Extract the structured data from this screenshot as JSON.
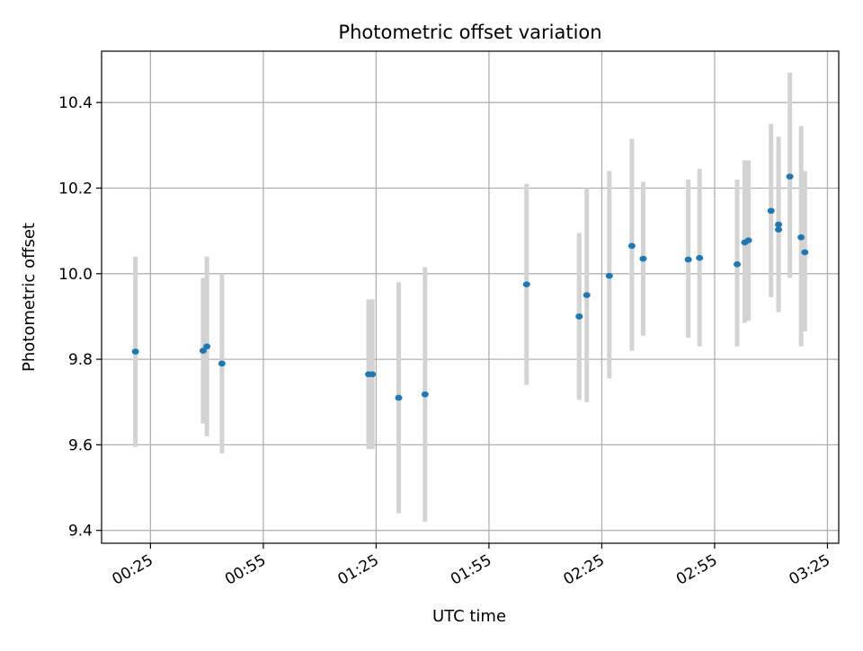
{
  "chart_data": {
    "type": "scatter",
    "title": "Photometric offset variation",
    "xlabel": "UTC time",
    "ylabel": "Photometric offset",
    "x_unit": "time of day (HH:MM UTC)",
    "xlim": [
      "00:12",
      "03:28"
    ],
    "ylim": [
      9.37,
      10.52
    ],
    "x_ticks": [
      "00:25",
      "00:55",
      "01:25",
      "01:55",
      "02:25",
      "02:55",
      "03:25"
    ],
    "y_ticks": [
      "9.4",
      "9.6",
      "9.8",
      "10.0",
      "10.2",
      "10.4"
    ],
    "grid": true,
    "error_bars": "symmetric vertical",
    "points": [
      {
        "x": "00:21",
        "y": 9.818,
        "err_low": 9.595,
        "err_high": 10.04
      },
      {
        "x": "00:39",
        "y": 9.82,
        "err_low": 9.65,
        "err_high": 9.99
      },
      {
        "x": "00:40",
        "y": 9.83,
        "err_low": 9.62,
        "err_high": 10.04
      },
      {
        "x": "00:44",
        "y": 9.79,
        "err_low": 9.58,
        "err_high": 10.0
      },
      {
        "x": "01:23",
        "y": 9.765,
        "err_low": 9.59,
        "err_high": 9.94
      },
      {
        "x": "01:24",
        "y": 9.765,
        "err_low": 9.59,
        "err_high": 9.94
      },
      {
        "x": "01:31",
        "y": 9.71,
        "err_low": 9.44,
        "err_high": 9.98
      },
      {
        "x": "01:38",
        "y": 9.718,
        "err_low": 9.42,
        "err_high": 10.015
      },
      {
        "x": "02:05",
        "y": 9.975,
        "err_low": 9.74,
        "err_high": 10.21
      },
      {
        "x": "02:19",
        "y": 9.9,
        "err_low": 9.705,
        "err_high": 10.095
      },
      {
        "x": "02:19",
        "y": 9.9,
        "err_low": 9.71,
        "err_high": 10.09
      },
      {
        "x": "02:21",
        "y": 9.95,
        "err_low": 9.7,
        "err_high": 10.2
      },
      {
        "x": "02:27",
        "y": 9.995,
        "err_low": 9.755,
        "err_high": 10.24
      },
      {
        "x": "02:33",
        "y": 10.065,
        "err_low": 9.82,
        "err_high": 10.315
      },
      {
        "x": "02:36",
        "y": 10.035,
        "err_low": 9.855,
        "err_high": 10.215
      },
      {
        "x": "02:48",
        "y": 10.033,
        "err_low": 9.85,
        "err_high": 10.22
      },
      {
        "x": "02:51",
        "y": 10.037,
        "err_low": 9.83,
        "err_high": 10.245
      },
      {
        "x": "03:01",
        "y": 10.022,
        "err_low": 9.83,
        "err_high": 10.22
      },
      {
        "x": "03:03",
        "y": 10.073,
        "err_low": 9.885,
        "err_high": 10.265
      },
      {
        "x": "03:04",
        "y": 10.078,
        "err_low": 9.89,
        "err_high": 10.265
      },
      {
        "x": "03:10",
        "y": 10.147,
        "err_low": 9.945,
        "err_high": 10.35
      },
      {
        "x": "03:12",
        "y": 10.103,
        "err_low": 9.915,
        "err_high": 10.29
      },
      {
        "x": "03:12",
        "y": 10.115,
        "err_low": 9.91,
        "err_high": 10.32
      },
      {
        "x": "03:15",
        "y": 10.227,
        "err_low": 9.99,
        "err_high": 10.47
      },
      {
        "x": "03:18",
        "y": 10.085,
        "err_low": 9.83,
        "err_high": 10.345
      },
      {
        "x": "03:19",
        "y": 10.05,
        "err_low": 9.865,
        "err_high": 10.24
      }
    ]
  },
  "colors": {
    "marker": "#1f77b4",
    "errorbar": "#d3d3d3",
    "grid": "#b0b0b0",
    "axes": "#000000",
    "background": "#ffffff"
  }
}
